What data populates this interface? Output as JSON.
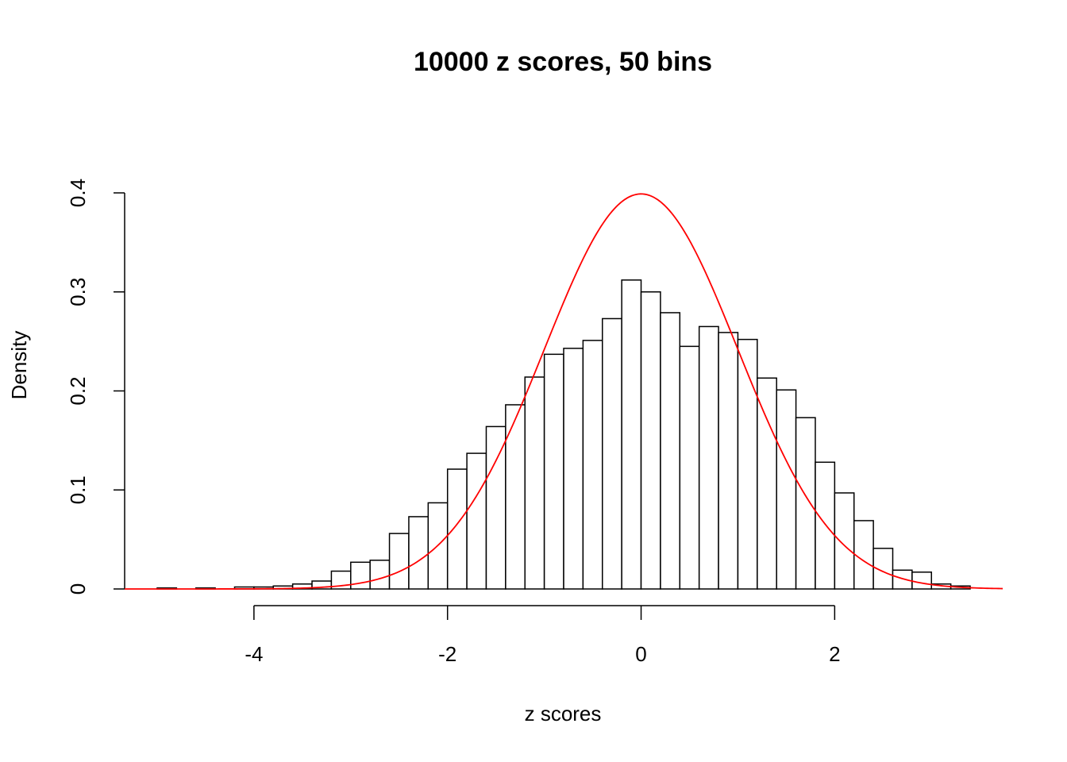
{
  "chart_data": {
    "type": "histogram",
    "title": "10000 z scores, 50 bins",
    "x_label": "z scores",
    "y_label": "Density",
    "bins": [
      -5.0,
      -4.8,
      -4.6,
      -4.4,
      -4.2,
      -4.0,
      -3.8,
      -3.6,
      -3.4,
      -3.2,
      -3.0,
      -2.8,
      -2.6,
      -2.4,
      -2.2,
      -2.0,
      -1.8,
      -1.6,
      -1.4,
      -1.2,
      -1.0,
      -0.8,
      -0.6,
      -0.4,
      -0.2,
      0.0,
      0.2,
      0.4,
      0.6,
      0.8,
      1.0,
      1.2,
      1.4,
      1.6,
      1.8,
      2.0,
      2.2,
      2.4,
      2.6,
      2.8,
      3.0,
      3.2,
      3.4
    ],
    "values": [
      0.001,
      0,
      0.001,
      0,
      0.002,
      0.002,
      0.003,
      0.005,
      0.008,
      0.018,
      0.027,
      0.029,
      0.056,
      0.073,
      0.087,
      0.121,
      0.137,
      0.164,
      0.186,
      0.214,
      0.237,
      0.243,
      0.251,
      0.273,
      0.312,
      0.3,
      0.279,
      0.245,
      0.265,
      0.259,
      0.252,
      0.213,
      0.201,
      0.173,
      0.128,
      0.097,
      0.069,
      0.041,
      0.019,
      0.017,
      0.005,
      0.003
    ],
    "color": "#ffffff",
    "edge_color": "#000000",
    "density_curve": {
      "mean": 0,
      "sd": 1,
      "color": "#ff0000"
    },
    "xlim": [
      -5.336,
      3.736
    ],
    "xticks": [
      -4,
      -2,
      0,
      2
    ],
    "ylim": [
      0,
      0.4
    ],
    "yticks": [
      0.0,
      0.1,
      0.2,
      0.3,
      0.4
    ]
  }
}
